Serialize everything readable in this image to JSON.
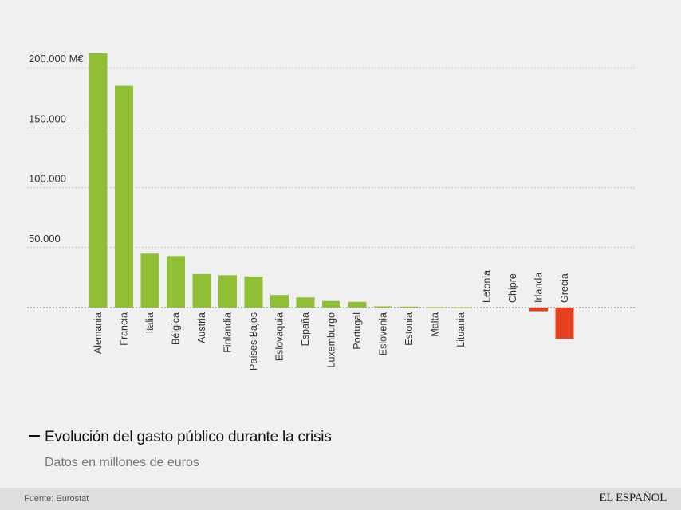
{
  "chart_data": {
    "type": "bar",
    "title": "Evolución del gasto público durante la crisis",
    "subtitle": "Datos en millones de euros",
    "ylim": [
      -25000,
      210000
    ],
    "yticks": [
      {
        "value": 200000,
        "label": "200.000 M€"
      },
      {
        "value": 150000,
        "label": "150.000"
      },
      {
        "value": 100000,
        "label": "100.000"
      },
      {
        "value": 50000,
        "label": "50.000"
      }
    ],
    "categories": [
      "Alemania",
      "Francia",
      "Italia",
      "Bélgica",
      "Austria",
      "Finlandia",
      "Países Bajos",
      "Eslovaquia",
      "España",
      "Luxemburgo",
      "Portugal",
      "Eslovenia",
      "Estonia",
      "Malta",
      "Lituania",
      "Letonia",
      "Chipre",
      "Irlanda",
      "Grecia"
    ],
    "values": [
      212000,
      185000,
      45000,
      43000,
      28000,
      27000,
      26000,
      10500,
      8500,
      5500,
      4800,
      1000,
      800,
      300,
      200,
      0,
      0,
      -3000,
      -26000
    ],
    "grid": true,
    "colors": {
      "positive": "#8ebf35",
      "negative": "#e5401f",
      "grid": "#bbbbbb",
      "zero_line": "#777777"
    }
  },
  "footer": {
    "source": "Fuente: Eurostat",
    "logo": "EL ESPAÑOL"
  }
}
